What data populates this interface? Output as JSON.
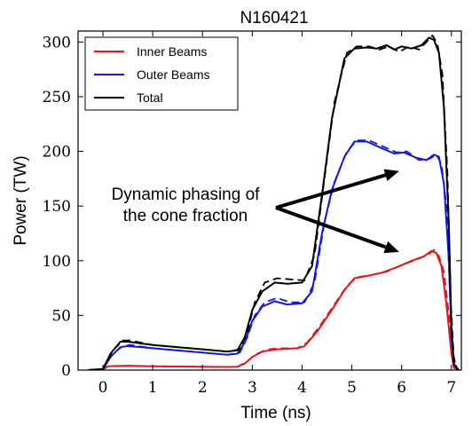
{
  "chart_data": {
    "type": "line",
    "title": "N160421",
    "xlabel": "Time (ns)",
    "ylabel": "Power (TW)",
    "xlim": [
      -0.5,
      7.2
    ],
    "ylim": [
      0,
      310
    ],
    "xticks": [
      0,
      1,
      2,
      3,
      4,
      5,
      6,
      7
    ],
    "yticks": [
      0,
      50,
      100,
      150,
      200,
      250,
      300
    ],
    "grid": false,
    "legend_position": "top-left",
    "annotation": {
      "lines": [
        "Dynamic phasing of",
        "the cone fraction"
      ],
      "arrow_targets": [
        [
          5.95,
          182
        ],
        [
          5.95,
          108
        ]
      ]
    },
    "series": [
      {
        "name": "Inner Beams",
        "color": "#e8141c",
        "solid": [
          [
            -0.3,
            0
          ],
          [
            0,
            0.5
          ],
          [
            0.1,
            3.5
          ],
          [
            0.5,
            4
          ],
          [
            1,
            3.5
          ],
          [
            2,
            3
          ],
          [
            2.5,
            2.8
          ],
          [
            2.7,
            3
          ],
          [
            2.85,
            6
          ],
          [
            3,
            12
          ],
          [
            3.2,
            17
          ],
          [
            3.5,
            19
          ],
          [
            3.9,
            20
          ],
          [
            4.05,
            22
          ],
          [
            4.3,
            35
          ],
          [
            4.6,
            55
          ],
          [
            4.85,
            73
          ],
          [
            5.05,
            84
          ],
          [
            5.3,
            86
          ],
          [
            5.6,
            89
          ],
          [
            5.9,
            94
          ],
          [
            6.2,
            100
          ],
          [
            6.45,
            104
          ],
          [
            6.6,
            109
          ],
          [
            6.7,
            107
          ],
          [
            6.8,
            95
          ],
          [
            6.9,
            60
          ],
          [
            7.0,
            15
          ],
          [
            7.05,
            2
          ],
          [
            7.15,
            0
          ]
        ],
        "dashed": [
          [
            -0.3,
            0
          ],
          [
            0,
            0.5
          ],
          [
            0.1,
            3.5
          ],
          [
            0.5,
            4
          ],
          [
            1,
            3.5
          ],
          [
            2,
            3
          ],
          [
            2.5,
            2.8
          ],
          [
            2.7,
            3
          ],
          [
            2.9,
            8
          ],
          [
            3.05,
            14
          ],
          [
            3.3,
            19
          ],
          [
            3.55,
            20
          ],
          [
            3.9,
            20
          ],
          [
            4.1,
            25
          ],
          [
            4.35,
            40
          ],
          [
            4.65,
            60
          ],
          [
            4.9,
            77
          ],
          [
            5.1,
            85
          ],
          [
            5.4,
            87
          ],
          [
            5.7,
            90
          ],
          [
            6.0,
            96
          ],
          [
            6.3,
            101
          ],
          [
            6.55,
            106
          ],
          [
            6.65,
            110
          ],
          [
            6.75,
            104
          ],
          [
            6.85,
            90
          ],
          [
            6.95,
            50
          ],
          [
            7.02,
            12
          ],
          [
            7.1,
            0
          ]
        ]
      },
      {
        "name": "Outer Beams",
        "color": "#1018e8",
        "solid": [
          [
            -0.3,
            0
          ],
          [
            0,
            1
          ],
          [
            0.15,
            12
          ],
          [
            0.35,
            21
          ],
          [
            0.5,
            22
          ],
          [
            1,
            20
          ],
          [
            2,
            16
          ],
          [
            2.5,
            14
          ],
          [
            2.7,
            15
          ],
          [
            2.85,
            25
          ],
          [
            3.0,
            45
          ],
          [
            3.2,
            58
          ],
          [
            3.45,
            63
          ],
          [
            3.7,
            60
          ],
          [
            4.0,
            61
          ],
          [
            4.2,
            72
          ],
          [
            4.4,
            125
          ],
          [
            4.6,
            165
          ],
          [
            4.85,
            195
          ],
          [
            5.05,
            209
          ],
          [
            5.3,
            209
          ],
          [
            5.6,
            203
          ],
          [
            5.85,
            198
          ],
          [
            6.05,
            199
          ],
          [
            6.3,
            194
          ],
          [
            6.5,
            192
          ],
          [
            6.65,
            197
          ],
          [
            6.75,
            195
          ],
          [
            6.85,
            170
          ],
          [
            6.95,
            100
          ],
          [
            7.0,
            30
          ],
          [
            7.05,
            5
          ],
          [
            7.15,
            0
          ]
        ],
        "dashed": [
          [
            -0.3,
            0
          ],
          [
            0,
            1
          ],
          [
            0.2,
            15
          ],
          [
            0.4,
            22
          ],
          [
            0.55,
            23
          ],
          [
            1,
            20
          ],
          [
            2,
            16
          ],
          [
            2.5,
            14
          ],
          [
            2.75,
            16
          ],
          [
            2.9,
            30
          ],
          [
            3.05,
            50
          ],
          [
            3.25,
            62
          ],
          [
            3.5,
            66
          ],
          [
            3.75,
            62
          ],
          [
            4.05,
            62
          ],
          [
            4.25,
            80
          ],
          [
            4.45,
            135
          ],
          [
            4.65,
            172
          ],
          [
            4.9,
            200
          ],
          [
            5.1,
            210
          ],
          [
            5.35,
            210
          ],
          [
            5.65,
            204
          ],
          [
            5.9,
            199
          ],
          [
            6.1,
            200
          ],
          [
            6.35,
            192
          ],
          [
            6.55,
            193
          ],
          [
            6.7,
            197
          ],
          [
            6.8,
            188
          ],
          [
            6.9,
            150
          ],
          [
            6.97,
            70
          ],
          [
            7.03,
            15
          ],
          [
            7.12,
            0
          ]
        ]
      },
      {
        "name": "Total",
        "color": "#000000",
        "solid": [
          [
            -0.3,
            0
          ],
          [
            0,
            1
          ],
          [
            0.15,
            15
          ],
          [
            0.35,
            26
          ],
          [
            0.5,
            26
          ],
          [
            1,
            23
          ],
          [
            2,
            19
          ],
          [
            2.5,
            17
          ],
          [
            2.7,
            18
          ],
          [
            2.85,
            30
          ],
          [
            3.0,
            55
          ],
          [
            3.2,
            72
          ],
          [
            3.45,
            80
          ],
          [
            3.7,
            79
          ],
          [
            4.0,
            80
          ],
          [
            4.2,
            95
          ],
          [
            4.4,
            160
          ],
          [
            4.6,
            230
          ],
          [
            4.85,
            285
          ],
          [
            5.05,
            294
          ],
          [
            5.3,
            295
          ],
          [
            5.5,
            294
          ],
          [
            5.7,
            297
          ],
          [
            5.85,
            293
          ],
          [
            6.0,
            296
          ],
          [
            6.2,
            294
          ],
          [
            6.4,
            297
          ],
          [
            6.55,
            304
          ],
          [
            6.65,
            302
          ],
          [
            6.75,
            290
          ],
          [
            6.85,
            240
          ],
          [
            6.95,
            130
          ],
          [
            7.0,
            40
          ],
          [
            7.05,
            5
          ],
          [
            7.15,
            0
          ]
        ],
        "dashed": [
          [
            -0.3,
            0
          ],
          [
            0,
            1
          ],
          [
            0.2,
            18
          ],
          [
            0.4,
            27
          ],
          [
            0.55,
            27
          ],
          [
            1,
            23
          ],
          [
            2,
            19
          ],
          [
            2.5,
            17
          ],
          [
            2.75,
            19
          ],
          [
            2.9,
            35
          ],
          [
            3.05,
            62
          ],
          [
            3.25,
            80
          ],
          [
            3.5,
            84
          ],
          [
            3.75,
            83
          ],
          [
            4.05,
            82
          ],
          [
            4.25,
            105
          ],
          [
            4.45,
            175
          ],
          [
            4.65,
            245
          ],
          [
            4.9,
            290
          ],
          [
            5.1,
            296
          ],
          [
            5.35,
            296
          ],
          [
            5.55,
            293
          ],
          [
            5.75,
            296
          ],
          [
            5.95,
            291
          ],
          [
            6.15,
            296
          ],
          [
            6.35,
            293
          ],
          [
            6.5,
            300
          ],
          [
            6.62,
            306
          ],
          [
            6.72,
            298
          ],
          [
            6.82,
            270
          ],
          [
            6.92,
            180
          ],
          [
            6.99,
            60
          ],
          [
            7.05,
            10
          ],
          [
            7.12,
            0
          ]
        ]
      }
    ]
  }
}
